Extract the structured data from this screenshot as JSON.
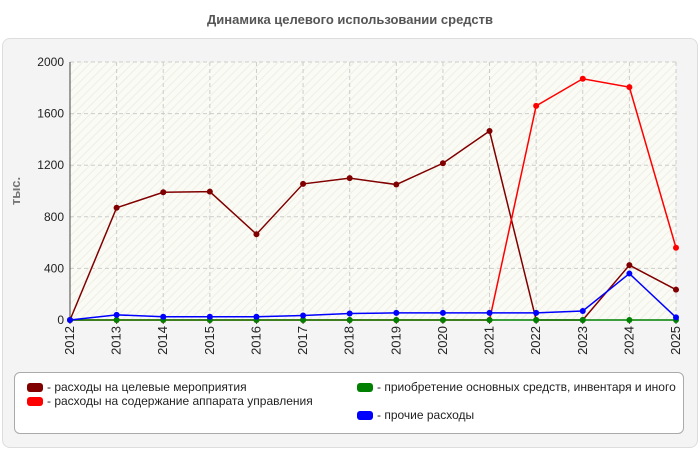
{
  "chart_data": {
    "type": "line",
    "title": "Динамика целевого использовании средств",
    "y_label": "тыс.",
    "categories": [
      "2012",
      "2013",
      "2014",
      "2015",
      "2016",
      "2017",
      "2018",
      "2019",
      "2020",
      "2021",
      "2022",
      "2023",
      "2024",
      "2025"
    ],
    "series": [
      {
        "name": "- расходы на целевые мероприятия",
        "color": "#800000",
        "values": [
          0,
          870,
          990,
          995,
          665,
          1055,
          1100,
          1050,
          1215,
          1465,
          0,
          0,
          425,
          235
        ]
      },
      {
        "name": "- расходы на содержание аппарата управления",
        "color": "#ff0000",
        "values": [
          0,
          0,
          0,
          0,
          0,
          0,
          0,
          0,
          0,
          0,
          1660,
          1870,
          1805,
          560
        ]
      },
      {
        "name": "- приобретение основных средств, инвентаря и иного",
        "color": "#008000",
        "values": [
          0,
          0,
          0,
          0,
          0,
          0,
          0,
          0,
          0,
          0,
          0,
          0,
          0,
          0
        ]
      },
      {
        "name": "- прочие расходы",
        "color": "#0000ff",
        "values": [
          0,
          40,
          25,
          25,
          25,
          35,
          50,
          55,
          55,
          55,
          55,
          70,
          360,
          20
        ]
      }
    ],
    "ylim": [
      0,
      2000
    ],
    "yticks": [
      0,
      400,
      800,
      1200,
      1600,
      2000
    ],
    "grid": true
  }
}
